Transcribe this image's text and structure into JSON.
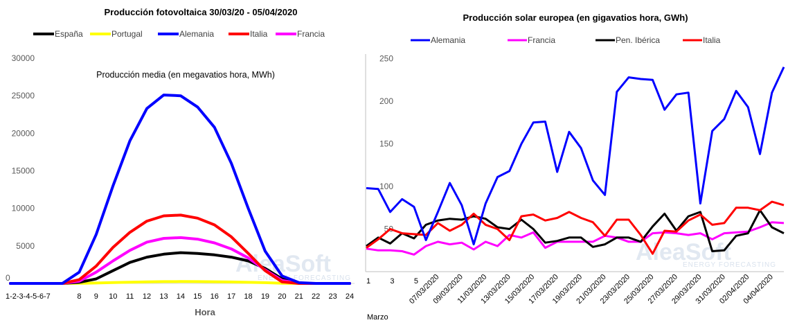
{
  "chart_data": [
    {
      "type": "line",
      "title": "Producción fotovoltaica 30/03/20 - 05/04/2020",
      "subtitle": "Producción media (en megavatios hora, MWh)",
      "xlabel": "Hora",
      "ylabel": "",
      "ylim": [
        0,
        30000
      ],
      "yticks": [
        "0",
        "5000",
        "10000",
        "15000",
        "20000",
        "25000",
        "30000"
      ],
      "first_xtick_label": "1-2-3-4-5-6-7",
      "x": [
        1,
        2,
        3,
        4,
        5,
        6,
        7,
        8,
        9,
        10,
        11,
        12,
        13,
        14,
        15,
        16,
        17,
        18,
        19,
        20,
        21,
        22,
        23,
        24
      ],
      "legend_position": "top",
      "series": [
        {
          "name": "España",
          "color": "#000000",
          "values": [
            0,
            0,
            0,
            0,
            0,
            0,
            0,
            150,
            600,
            1700,
            2800,
            3500,
            3900,
            4100,
            4000,
            3800,
            3500,
            3000,
            2000,
            600,
            0,
            0,
            0,
            0
          ]
        },
        {
          "name": "Portugal",
          "color": "#ffff00",
          "values": [
            0,
            0,
            0,
            0,
            0,
            0,
            0,
            20,
            60,
            120,
            170,
            210,
            240,
            250,
            240,
            220,
            190,
            150,
            100,
            30,
            0,
            0,
            0,
            0
          ]
        },
        {
          "name": "Alemania",
          "color": "#0000ff",
          "values": [
            0,
            0,
            0,
            0,
            0,
            0,
            0,
            1500,
            6500,
            13000,
            19000,
            23300,
            25100,
            25000,
            23500,
            20800,
            16000,
            10000,
            4300,
            1000,
            100,
            0,
            0,
            0
          ]
        },
        {
          "name": "Italia",
          "color": "#ff0000",
          "values": [
            0,
            0,
            0,
            0,
            0,
            0,
            0,
            500,
            2300,
            4800,
            6800,
            8300,
            9000,
            9100,
            8700,
            7800,
            6200,
            4000,
            1700,
            200,
            0,
            0,
            0,
            0
          ]
        },
        {
          "name": "Francia",
          "color": "#ff00ff",
          "values": [
            0,
            0,
            0,
            0,
            0,
            0,
            0,
            300,
            1500,
            3000,
            4400,
            5500,
            6000,
            6100,
            5900,
            5400,
            4600,
            3400,
            1800,
            400,
            0,
            0,
            0,
            0
          ]
        }
      ]
    },
    {
      "type": "line",
      "title": "Producción solar europea (en gigavatios hora, GWh)",
      "xlabel": "",
      "ylabel": "",
      "ylim": [
        0,
        250
      ],
      "yticks": [
        "50",
        "100",
        "150",
        "200",
        "250"
      ],
      "month_label": "Marzo",
      "x_small_labels": [
        {
          "day": 1,
          "label": "1"
        },
        {
          "day": 3,
          "label": "3"
        },
        {
          "day": 5,
          "label": "5"
        }
      ],
      "x_date_labels": [
        {
          "day": 7,
          "label": "07/03/2020"
        },
        {
          "day": 9,
          "label": "09/03/2020"
        },
        {
          "day": 11,
          "label": "11/03/2020"
        },
        {
          "day": 13,
          "label": "13/03/2020"
        },
        {
          "day": 15,
          "label": "15/03/2020"
        },
        {
          "day": 17,
          "label": "17/03/2020"
        },
        {
          "day": 19,
          "label": "19/03/2020"
        },
        {
          "day": 21,
          "label": "21/03/2020"
        },
        {
          "day": 23,
          "label": "23/03/2020"
        },
        {
          "day": 25,
          "label": "25/03/2020"
        },
        {
          "day": 27,
          "label": "27/03/2020"
        },
        {
          "day": 29,
          "label": "29/03/2020"
        },
        {
          "day": 31,
          "label": "31/03/2020"
        },
        {
          "day": 33,
          "label": "02/04/2020"
        },
        {
          "day": 35,
          "label": "04/04/2020"
        }
      ],
      "x": [
        1,
        2,
        3,
        4,
        5,
        6,
        7,
        8,
        9,
        10,
        11,
        12,
        13,
        14,
        15,
        16,
        17,
        18,
        19,
        20,
        21,
        22,
        23,
        24,
        25,
        26,
        27,
        28,
        29,
        30,
        31,
        32,
        33,
        34,
        35,
        36
      ],
      "legend_position": "top",
      "series": [
        {
          "name": "Alemania",
          "color": "#0000ff",
          "values": [
            98,
            97,
            70,
            85,
            76,
            37,
            70,
            104,
            78,
            32,
            80,
            111,
            118,
            150,
            175,
            176,
            117,
            164,
            145,
            107,
            90,
            211,
            228,
            226,
            225,
            190,
            208,
            210,
            80,
            165,
            179,
            212,
            193,
            138,
            210,
            240
          ]
        },
        {
          "name": "Francia",
          "color": "#ff00ff",
          "values": [
            27,
            25,
            25,
            24,
            20,
            30,
            35,
            32,
            34,
            26,
            35,
            30,
            43,
            40,
            46,
            28,
            35,
            35,
            35,
            35,
            42,
            40,
            35,
            35,
            45,
            46,
            45,
            43,
            45,
            38,
            45,
            46,
            47,
            52,
            58,
            57
          ]
        },
        {
          "name": "Pen. Ibérica",
          "color": "#000000",
          "values": [
            30,
            40,
            33,
            45,
            39,
            55,
            60,
            62,
            61,
            65,
            62,
            52,
            50,
            61,
            50,
            34,
            36,
            40,
            40,
            29,
            32,
            40,
            40,
            35,
            53,
            68,
            48,
            65,
            70,
            24,
            25,
            42,
            45,
            72,
            52,
            45
          ]
        },
        {
          "name": "Italia",
          "color": "#ff0000",
          "values": [
            28,
            38,
            50,
            45,
            44,
            43,
            57,
            48,
            55,
            68,
            55,
            50,
            37,
            65,
            67,
            60,
            63,
            70,
            63,
            58,
            42,
            61,
            61,
            43,
            21,
            48,
            47,
            60,
            67,
            55,
            57,
            75,
            75,
            72,
            82,
            78
          ]
        }
      ],
      "watermark": "AleaSoft",
      "watermark_sub": "ENERGY FORECASTING"
    }
  ]
}
